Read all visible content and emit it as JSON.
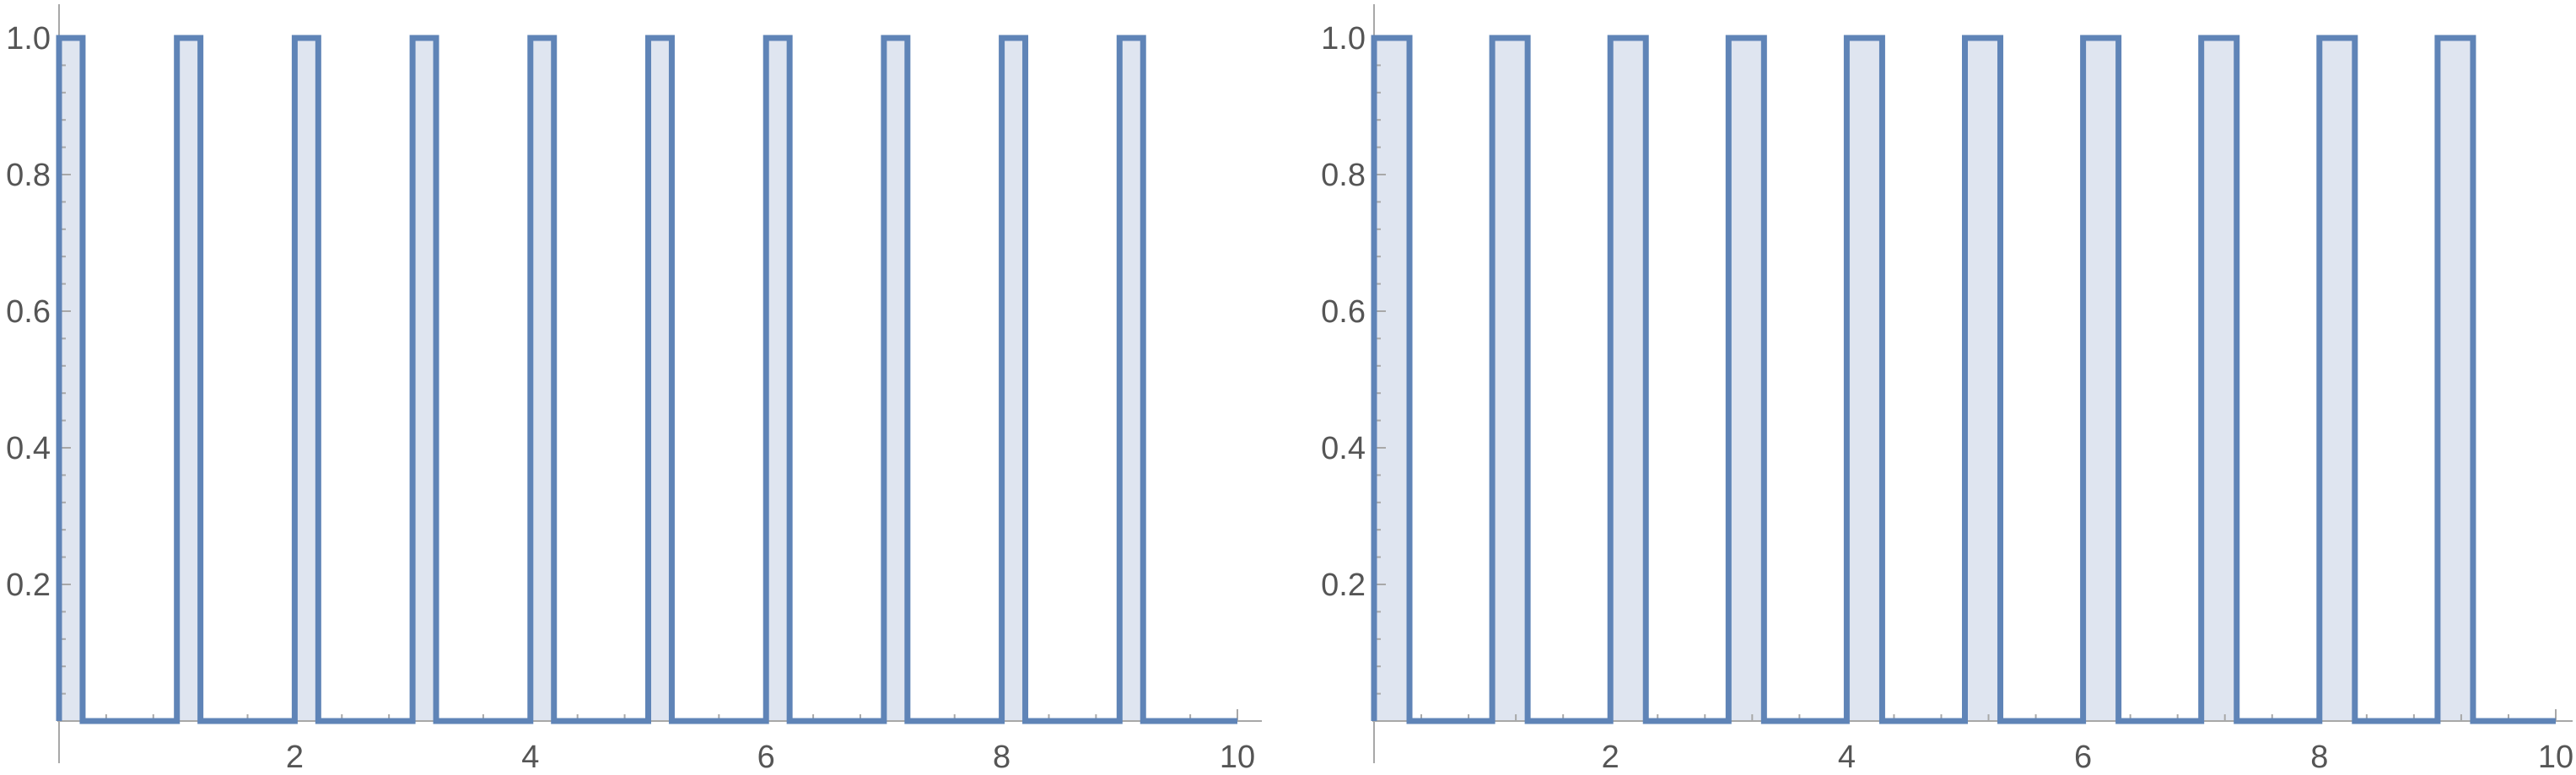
{
  "chart_data": [
    {
      "type": "area",
      "step": true,
      "xlim": [
        0,
        10
      ],
      "ylim": [
        0,
        1.0
      ],
      "x_ticks": [
        "2",
        "4",
        "6",
        "8",
        "10"
      ],
      "y_ticks": [
        "0.2",
        "0.4",
        "0.6",
        "0.8",
        "1.0"
      ],
      "pulse_height": 1.0,
      "baseline": 0,
      "pulses": [
        [
          0,
          0.2
        ],
        [
          1,
          1.2
        ],
        [
          2,
          2.2
        ],
        [
          3,
          3.2
        ],
        [
          4,
          4.2
        ],
        [
          5,
          5.2
        ],
        [
          6,
          6.2
        ],
        [
          7,
          7.2
        ],
        [
          8,
          8.2
        ],
        [
          9,
          9.2
        ]
      ],
      "line_end_x": 10,
      "line_color": "#5f84b7",
      "fill_color": "#dfe5f0"
    },
    {
      "type": "area",
      "step": true,
      "xlim": [
        0,
        10
      ],
      "ylim": [
        0,
        1.0
      ],
      "x_ticks": [
        "2",
        "4",
        "6",
        "8",
        "10"
      ],
      "y_ticks": [
        "0.2",
        "0.4",
        "0.6",
        "0.8",
        "1.0"
      ],
      "pulse_height": 1.0,
      "baseline": 0,
      "pulses": [
        [
          0,
          0.3
        ],
        [
          1,
          1.3
        ],
        [
          2,
          2.3
        ],
        [
          3,
          3.3
        ],
        [
          4,
          4.3
        ],
        [
          5,
          5.3
        ],
        [
          6,
          6.3
        ],
        [
          7,
          7.3
        ],
        [
          8,
          8.3
        ],
        [
          9,
          9.3
        ]
      ],
      "line_end_x": 10,
      "line_color": "#5f84b7",
      "fill_color": "#dfe5f0"
    }
  ]
}
